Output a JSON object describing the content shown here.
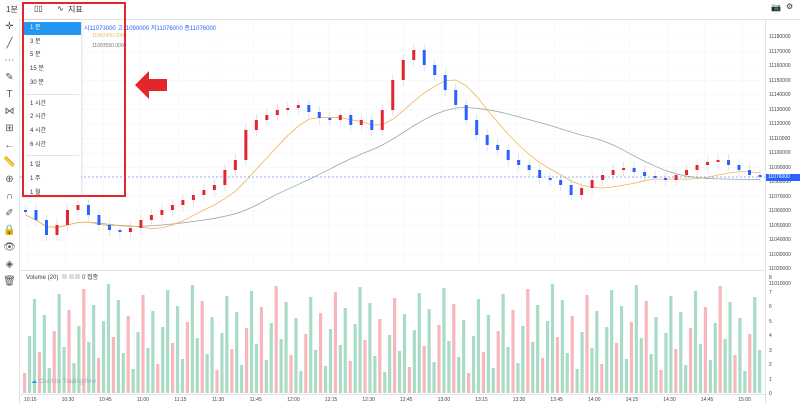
{
  "toolbar": {
    "interval": "1분",
    "indicators": "지표"
  },
  "ohlc": {
    "open": "시11079000",
    "high": "고11090000",
    "low": "저11076000",
    "close": "종11076000",
    "ma1": "11082400.0000",
    "ma2": "11088550.0000"
  },
  "interval_menu": {
    "items": [
      "1 분",
      "3 분",
      "5 분",
      "15 분",
      "30 분",
      "1 시간",
      "2 시간",
      "4 시간",
      "6 시간",
      "1 일",
      "1 주",
      "1 월"
    ],
    "selected": "1 분"
  },
  "price_axis": [
    "11180000",
    "11170000",
    "11160000",
    "11150000",
    "11140000",
    "11130000",
    "11120000",
    "11110000",
    "11100000",
    "11090000",
    "11080000",
    "11070000",
    "11060000",
    "11050000",
    "11040000",
    "11030000",
    "11020000",
    "11010000"
  ],
  "current_price": "11076000",
  "volume": {
    "label": "Volume (20)",
    "suffix": "0",
    "action": "접종",
    "axis": [
      "8",
      "7",
      "6",
      "5",
      "4",
      "3",
      "2",
      "1",
      "0"
    ]
  },
  "time_axis": [
    "10:15",
    "10:30",
    "10:45",
    "11:00",
    "11:15",
    "11:30",
    "11:45",
    "12:00",
    "12:15",
    "12:30",
    "12:45",
    "13:00",
    "13:15",
    "13:30",
    "13:45",
    "14:00",
    "14:15",
    "14:30",
    "14:45",
    "15:00"
  ],
  "watermark": "Chart by TradingView",
  "colors": {
    "up": "#e3262b",
    "down": "#2962ff",
    "vol_up": "#f7b8bc",
    "vol_down": "#a8dcc6",
    "ma_short": "#f0b35a",
    "ma_long": "#9aa89a"
  }
}
